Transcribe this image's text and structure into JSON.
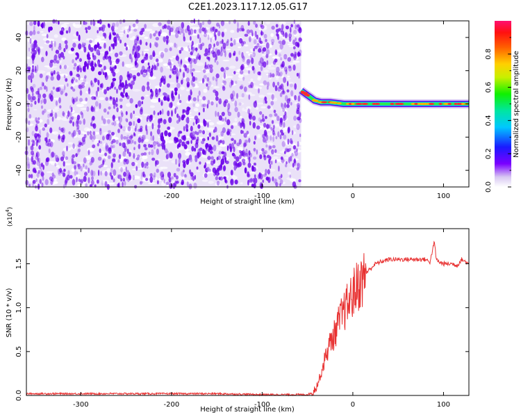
{
  "title": "C2E1.2023.117.12.05.G17",
  "colors": {
    "spectro_cloud": "#d8c8f2",
    "spectro_dot": "#6a00ea",
    "snr_line": "#e83232",
    "track_green": "#32e84a",
    "track_cyan": "#00d6e6",
    "track_red": "#ff2a2a"
  },
  "chart_data": [
    {
      "type": "heatmap",
      "name": "spectrogram",
      "xlabel": "Height of straight line (km)",
      "ylabel": "Frequency (Hz)",
      "xlim": [
        -360,
        128
      ],
      "ylim": [
        -50,
        50
      ],
      "xticks": [
        -300,
        -200,
        -100,
        0,
        100
      ],
      "yticks": [
        -40,
        -20,
        0,
        20,
        40
      ],
      "noise_region_x": [
        -360,
        -57
      ],
      "tone_track": {
        "x": [
          -57,
          -52,
          -47,
          -42,
          -35,
          -25,
          -10,
          0,
          20,
          40,
          60,
          80,
          100,
          120,
          128
        ],
        "freq": [
          8,
          6,
          4,
          2,
          1,
          1,
          0,
          0,
          0,
          0,
          0,
          0,
          0,
          0,
          0
        ],
        "amplitude": [
          0.55,
          0.6,
          0.5,
          0.55,
          0.6,
          0.7,
          0.8,
          0.85,
          0.9,
          0.9,
          0.9,
          0.9,
          0.9,
          0.9,
          0.85
        ]
      },
      "colorbar": {
        "label": "Normalized spectral amplitude",
        "ticks": [
          "0.0",
          "0.2",
          "0.4",
          "0.6",
          "0.8"
        ],
        "range": [
          0,
          1
        ]
      }
    },
    {
      "type": "line",
      "name": "snr",
      "xlabel": "Height of straight line (km)",
      "ylabel": "SNR (10 * v/v)",
      "yscale_label": "(x10",
      "yscale_exp": "4",
      "yscale_close": ")",
      "xlim": [
        -360,
        128
      ],
      "ylim": [
        0,
        1.9
      ],
      "xticks": [
        -300,
        -200,
        -100,
        0,
        100
      ],
      "yticks": [
        "0.0",
        "0.5",
        "1.0",
        "1.5"
      ],
      "series": [
        {
          "x": [
            -360,
            -300,
            -250,
            -200,
            -150,
            -100,
            -60,
            -50,
            -45,
            -40,
            -35,
            -30,
            -25,
            -20,
            -15,
            -10,
            -5,
            0,
            5,
            10,
            15,
            20,
            25,
            30,
            40,
            50,
            60,
            70,
            80,
            85,
            90,
            92,
            95,
            100,
            110,
            115,
            120,
            128
          ],
          "y": [
            0.02,
            0.02,
            0.02,
            0.02,
            0.02,
            0.01,
            0.01,
            0.01,
            0.03,
            0.1,
            0.25,
            0.45,
            0.6,
            0.7,
            0.85,
            0.95,
            1.05,
            1.15,
            1.25,
            1.3,
            1.4,
            1.45,
            1.5,
            1.52,
            1.55,
            1.55,
            1.55,
            1.55,
            1.55,
            1.52,
            1.75,
            1.55,
            1.52,
            1.5,
            1.5,
            1.48,
            1.55,
            1.5
          ]
        }
      ]
    }
  ]
}
